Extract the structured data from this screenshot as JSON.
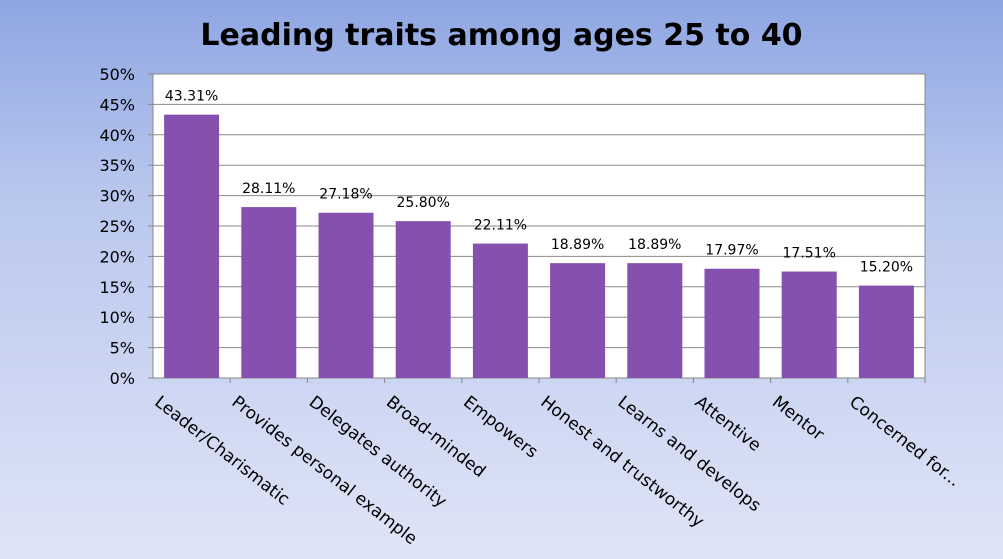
{
  "chart_data": {
    "type": "bar",
    "title": "Leading traits among ages 25 to 40",
    "xlabel": "",
    "ylabel": "",
    "ylim": [
      0,
      50
    ],
    "y_ticks": [
      "0%",
      "5%",
      "10%",
      "15%",
      "20%",
      "25%",
      "30%",
      "35%",
      "40%",
      "45%",
      "50%"
    ],
    "categories": [
      "Leader/Charismatic",
      "Provides personal example",
      "Delegates authority",
      "Broad-minded",
      "Empowers",
      "Honest and trustworthy",
      "Learns and develops",
      "Attentive",
      "Mentor",
      "Concerned for..."
    ],
    "values": [
      43.31,
      28.11,
      27.18,
      25.8,
      22.11,
      18.89,
      18.89,
      17.97,
      17.51,
      15.2
    ],
    "data_labels": [
      "43.31%",
      "28.11%",
      "27.18%",
      "25.80%",
      "22.11%",
      "18.89%",
      "18.89%",
      "17.97%",
      "17.51%",
      "15.20%"
    ],
    "grid": true,
    "legend": "none",
    "bar_color": "#8650ae"
  }
}
